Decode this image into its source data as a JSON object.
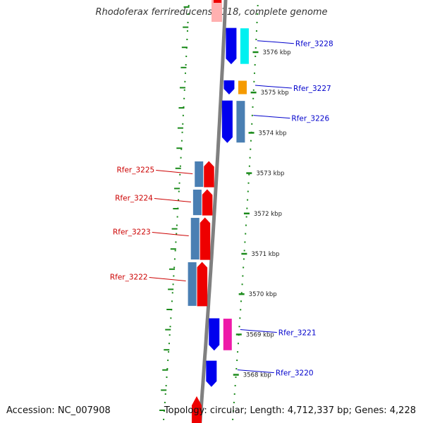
{
  "title": "Rhodoferax ferrireducens T118, complete genome",
  "footer": {
    "accession": "Accession: NC_007908",
    "summary": "Topology: circular; Length: 4,712,337 bp; Genes: 4,228"
  },
  "colors": {
    "backbone": "#808080",
    "tick": "#1a8a1a",
    "forward_label": "#0000cc",
    "reverse_label": "#cc0000",
    "blue": "#0000ee",
    "red": "#ee0000",
    "steelblue": "#4a7fb3",
    "cyan": "#00f0f0",
    "orange": "#f59a00",
    "magenta": "#ee1aa8",
    "pink": "#ffb0b0"
  },
  "scale": {
    "unit": "kbp",
    "ticks": [
      {
        "value": 3576,
        "label": "3576 kbp"
      },
      {
        "value": 3575,
        "label": "3575 kbp"
      },
      {
        "value": 3574,
        "label": "3574 kbp"
      },
      {
        "value": 3573,
        "label": "3573 kbp"
      },
      {
        "value": 3572,
        "label": "3572 kbp"
      },
      {
        "value": 3571,
        "label": "3571 kbp"
      },
      {
        "value": 3570,
        "label": "3570 kbp"
      },
      {
        "value": 3569,
        "label": "3569 kbp"
      },
      {
        "value": 3568,
        "label": "3568 kbp"
      }
    ]
  },
  "genes": [
    {
      "name": "Rfer_3228",
      "strand": "forward",
      "start": 3575.7,
      "end": 3576.6,
      "color": "blue",
      "outer_color": "cyan"
    },
    {
      "name": "Rfer_3227",
      "strand": "forward",
      "start": 3574.95,
      "end": 3575.3,
      "color": "blue",
      "outer_color": "orange"
    },
    {
      "name": "Rfer_3226",
      "strand": "forward",
      "start": 3573.75,
      "end": 3574.8,
      "color": "blue",
      "outer_color": "steelblue"
    },
    {
      "name": "Rfer_3225",
      "strand": "reverse",
      "start": 3572.65,
      "end": 3573.3,
      "color": "red",
      "outer_color": "steelblue"
    },
    {
      "name": "Rfer_3224",
      "strand": "reverse",
      "start": 3571.95,
      "end": 3572.6,
      "color": "red",
      "outer_color": "steelblue"
    },
    {
      "name": "Rfer_3223",
      "strand": "reverse",
      "start": 3570.85,
      "end": 3571.9,
      "color": "red",
      "outer_color": "steelblue"
    },
    {
      "name": "Rfer_3222",
      "strand": "reverse",
      "start": 3569.7,
      "end": 3570.8,
      "color": "red",
      "outer_color": "steelblue"
    },
    {
      "name": "Rfer_3221",
      "strand": "forward",
      "start": 3568.6,
      "end": 3569.4,
      "color": "blue",
      "outer_color": "magenta"
    },
    {
      "name": "Rfer_3220",
      "strand": "forward",
      "start": 3567.7,
      "end": 3568.35,
      "color": "blue",
      "outer_color": null
    }
  ]
}
